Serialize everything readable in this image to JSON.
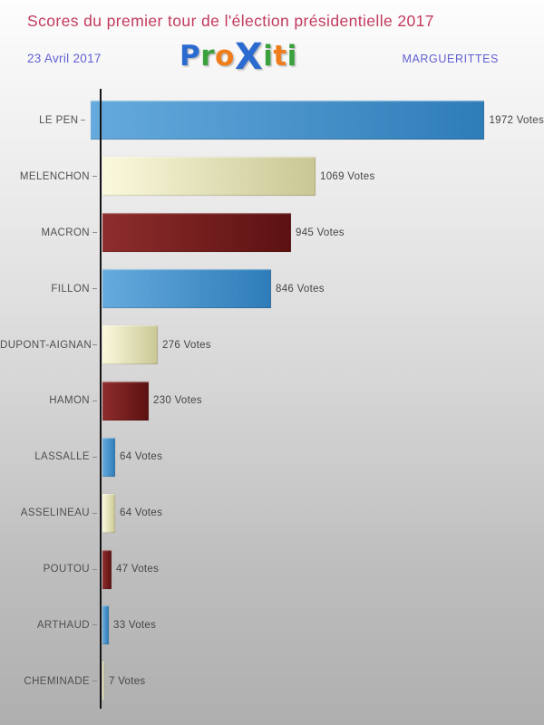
{
  "header": {
    "title": "Scores du premier tour de l'élection présidentielle 2017",
    "title_color": "#c33a5c",
    "date": "23 Avril 2017",
    "city": "MARGUERITTES",
    "header_accent_color": "#6060d4",
    "logo": {
      "name": "Proxiti",
      "letters": [
        {
          "ch": "P",
          "color": "#2b6bd0"
        },
        {
          "ch": "r",
          "color": "#3aa13d"
        },
        {
          "ch": "o",
          "color": "#ef7d1a"
        },
        {
          "ch": "X",
          "color": "#2b6bd0",
          "big": true
        },
        {
          "ch": "i",
          "color": "#3aa13d"
        },
        {
          "ch": "t",
          "color": "#ef7d1a"
        },
        {
          "ch": "i",
          "color": "#3aa13d"
        }
      ]
    }
  },
  "chart_data": {
    "type": "bar",
    "orientation": "horizontal",
    "title": "Scores du premier tour de l'élection présidentielle 2017",
    "categories": [
      "LE PEN",
      "MELENCHON",
      "MACRON",
      "FILLON",
      "DUPONT-AIGNAN",
      "HAMON",
      "LASSALLE",
      "ASSELINEAU",
      "POUTOU",
      "ARTHAUD",
      "CHEMINADE"
    ],
    "values": [
      1972,
      1069,
      945,
      846,
      276,
      230,
      64,
      64,
      47,
      33,
      7
    ],
    "value_suffix": "Votes",
    "xlim": [
      0,
      1972
    ],
    "grid": false,
    "legend": false,
    "axis_color": "#151515",
    "tick_color": "#8a8a8a",
    "category_label_color": "#4f4f4f",
    "value_label_color": "#454545",
    "bar_palette": [
      {
        "name": "blue",
        "from": "#65aadd",
        "to": "#2e7cb8"
      },
      {
        "name": "cream",
        "from": "#fbf9dc",
        "to": "#c9c794"
      },
      {
        "name": "maroon",
        "from": "#8e2d2d",
        "to": "#5c1111"
      }
    ]
  }
}
